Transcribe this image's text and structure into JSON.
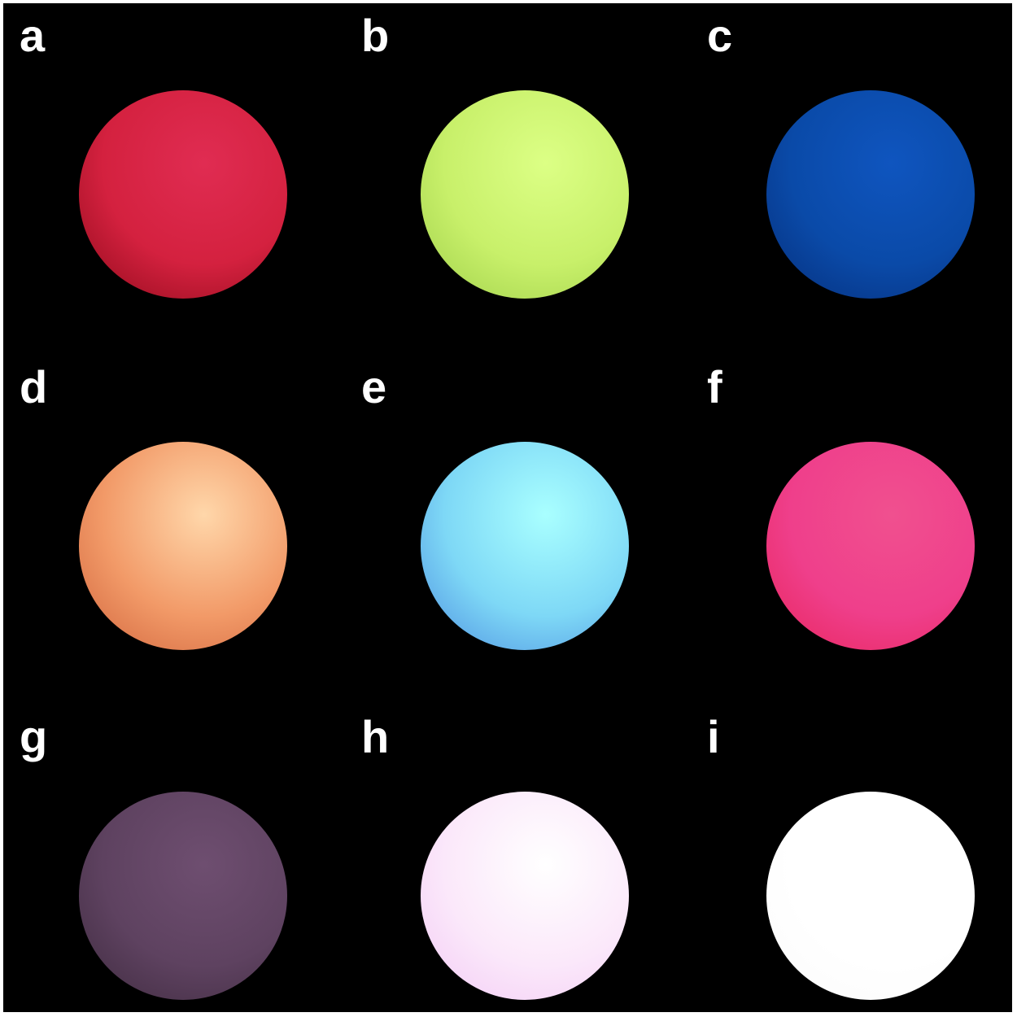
{
  "panels": [
    {
      "label": "a",
      "color": "#d4213f",
      "highlight": "#e02c52",
      "shadow": "#8e0a1a"
    },
    {
      "label": "b",
      "color": "#c8f06a",
      "highlight": "#dcff85",
      "shadow": "#9fcf4a"
    },
    {
      "label": "c",
      "color": "#0a4aa8",
      "highlight": "#0f55bf",
      "shadow": "#062e7a"
    },
    {
      "label": "d",
      "color": "#f29a68",
      "highlight": "#ffd7aa",
      "shadow": "#d0643c"
    },
    {
      "label": "e",
      "color": "#7ed8f6",
      "highlight": "#a9ffff",
      "shadow": "#4c8de0"
    },
    {
      "label": "f",
      "color": "#ef3f8b",
      "highlight": "#f0508f",
      "shadow": "#e8245c"
    },
    {
      "label": "g",
      "color": "#5e4260",
      "highlight": "#6e4e70",
      "shadow": "#3e2a3e"
    },
    {
      "label": "h",
      "color": "#fbe8fa",
      "highlight": "#ffffff",
      "shadow": "#f2c9f5"
    },
    {
      "label": "i",
      "color": "#ffffff",
      "highlight": "#ffffff",
      "shadow": "#fafafa"
    }
  ]
}
